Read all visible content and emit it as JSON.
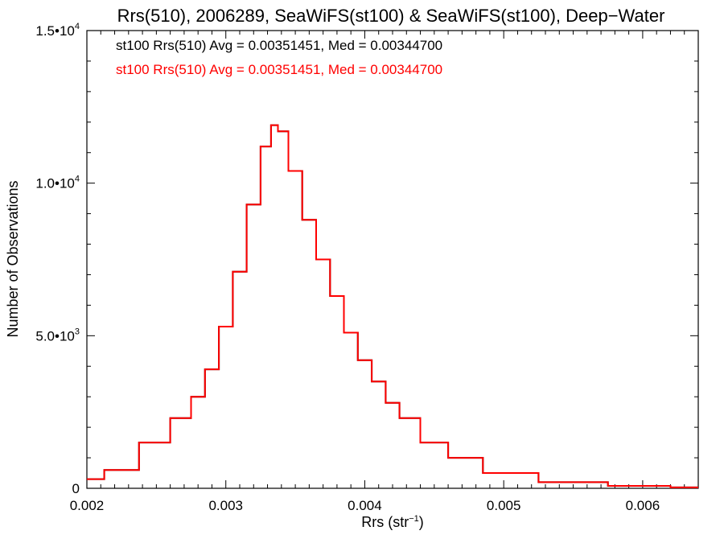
{
  "chart_data": {
    "type": "line",
    "title": "Rrs(510), 2006289, SeaWiFS(st100) & SeaWiFS(st100), Deep−Water",
    "xlabel": {
      "base": "Rrs (str",
      "sup": "−1",
      "end": ")"
    },
    "ylabel": "Number of Observations",
    "xlim": [
      0.002,
      0.0064
    ],
    "ylim": [
      0,
      15000
    ],
    "x_ticks": [
      {
        "value": 0.002,
        "label": "0.002"
      },
      {
        "value": 0.003,
        "label": "0.003"
      },
      {
        "value": 0.004,
        "label": "0.004"
      },
      {
        "value": 0.005,
        "label": "0.005"
      },
      {
        "value": 0.006,
        "label": "0.006"
      }
    ],
    "y_ticks": [
      {
        "value": 0,
        "base": "0",
        "sup": ""
      },
      {
        "value": 5000,
        "base": "5.0•10",
        "sup": "3"
      },
      {
        "value": 10000,
        "base": "1.0•10",
        "sup": "4"
      },
      {
        "value": 15000,
        "base": "1.5•10",
        "sup": "4"
      }
    ],
    "annotations": [
      {
        "text": "st100 Rrs(510) Avg = 0.00351451, Med = 0.00344700",
        "color": "#000000"
      },
      {
        "text": "st100 Rrs(510) Avg = 0.00351451, Med = 0.00344700",
        "color": "#ff0000"
      }
    ],
    "grid": false,
    "series": [
      {
        "color": "#000000",
        "x": [
          0.002,
          0.00225,
          0.0025,
          0.0027,
          0.0028,
          0.0029,
          0.003,
          0.0031,
          0.0032,
          0.0033,
          0.00335,
          0.0034,
          0.0035,
          0.0036,
          0.0037,
          0.0038,
          0.0039,
          0.004,
          0.0041,
          0.0042,
          0.0043,
          0.0045,
          0.0047,
          0.005,
          0.0055,
          0.006,
          0.0064
        ],
        "y": [
          300,
          600,
          1500,
          2300,
          3000,
          3900,
          5300,
          7100,
          9300,
          11200,
          11900,
          11700,
          10400,
          8800,
          7500,
          6300,
          5100,
          4200,
          3500,
          2800,
          2300,
          1500,
          1000,
          500,
          200,
          80,
          30
        ]
      },
      {
        "color": "#ff0000",
        "x": [
          0.002,
          0.00225,
          0.0025,
          0.0027,
          0.0028,
          0.0029,
          0.003,
          0.0031,
          0.0032,
          0.0033,
          0.00335,
          0.0034,
          0.0035,
          0.0036,
          0.0037,
          0.0038,
          0.0039,
          0.004,
          0.0041,
          0.0042,
          0.0043,
          0.0045,
          0.0047,
          0.005,
          0.0055,
          0.006,
          0.0064
        ],
        "y": [
          300,
          600,
          1500,
          2300,
          3000,
          3900,
          5300,
          7100,
          9300,
          11200,
          11900,
          11700,
          10400,
          8800,
          7500,
          6300,
          5100,
          4200,
          3500,
          2800,
          2300,
          1500,
          1000,
          500,
          200,
          80,
          30
        ]
      }
    ]
  }
}
